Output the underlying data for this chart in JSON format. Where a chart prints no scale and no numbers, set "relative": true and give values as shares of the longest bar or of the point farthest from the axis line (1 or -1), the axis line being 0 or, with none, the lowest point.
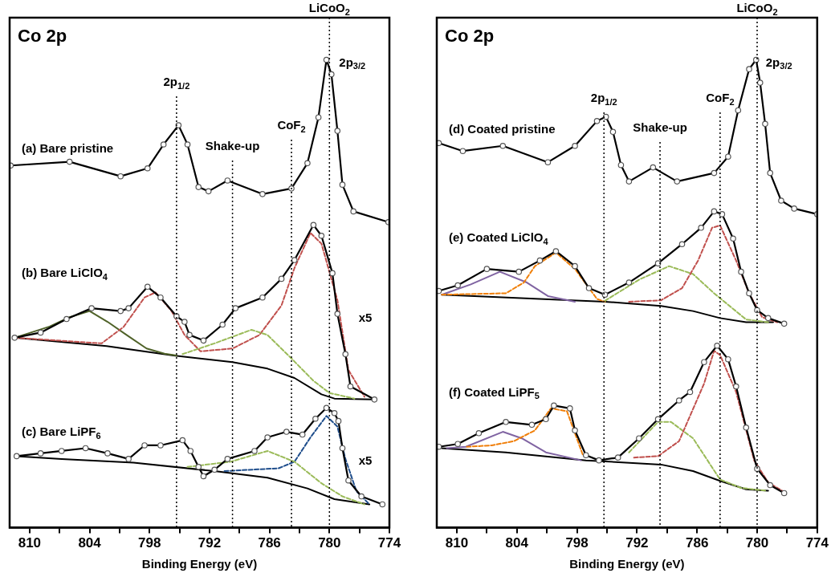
{
  "chart_data": [
    {
      "type": "line",
      "title": "Co 2p",
      "xlabel": "Binding Energy (eV)",
      "relative": true,
      "legend": false,
      "grid": false,
      "tick_labels": "x",
      "xlim": [
        812,
        774
      ],
      "xticks": [
        810,
        {
          "value": 807,
          "label": null
        },
        804,
        {
          "value": 801,
          "label": null
        },
        798,
        {
          "value": 795,
          "label": null
        },
        792,
        {
          "value": 789,
          "label": null
        },
        786,
        {
          "value": 783,
          "label": null
        },
        780,
        {
          "value": 777,
          "label": null
        },
        774
      ],
      "ref_lines": [
        {
          "axis": "x",
          "value": 795.3,
          "label": "2p$_{1/2}$",
          "line_style": "dotted",
          "color": "#000000"
        },
        {
          "axis": "x",
          "value": 789.7,
          "label": "Shake-up",
          "line_style": "dotted",
          "color": "#000000"
        },
        {
          "axis": "x",
          "value": 783.8,
          "label": "CoF$_{2}$",
          "line_style": "dotted",
          "color": "#000000"
        },
        {
          "axis": "x",
          "value": 780,
          "label": "LiCoO$_{2}$",
          "line_style": "dotted",
          "color": "#000000"
        }
      ],
      "annotations": [
        {
          "text": "2p$_{3/2}$",
          "x": 780,
          "y": 1
        },
        "x5",
        "x5"
      ],
      "series": [
        {
          "name": "(a) Bare pristine",
          "type": "line",
          "color": "#000000",
          "marker": "circle",
          "line_style": "solid",
          "x": [
            811.9,
            806,
            800.9,
            798.2,
            796.6,
            795.1,
            794.2,
            793.1,
            792.1,
            790.2,
            786.7,
            783.8,
            782.2,
            781.1,
            780.3,
            779.8,
            779.2,
            778.7,
            777.6,
            774.1
          ],
          "values": [
            0.774,
            0.782,
            0.751,
            0.768,
            0.819,
            0.86,
            0.819,
            0.728,
            0.719,
            0.742,
            0.713,
            0.725,
            0.779,
            0.877,
            1,
            0.969,
            0.848,
            0.733,
            0.676,
            0.653
          ]
        },
        {
          "type": "line",
          "color": "#000000",
          "marker": "none",
          "line_style": "solid",
          "x": [
            811.5,
            802.3,
            795.6,
            789.7,
            786.2,
            783.5,
            780.8,
            779.5,
            775.6
          ],
          "values": [
            0.406,
            0.388,
            0.368,
            0.354,
            0.34,
            0.32,
            0.285,
            0.276,
            0.274
          ]
        },
        {
          "type": "line",
          "color": "#4f6228",
          "marker": "none",
          "line_style": "solid",
          "x": [
            811.5,
            808,
            806,
            804,
            802.2,
            800.3,
            798.3,
            796.5,
            795.3
          ],
          "values": [
            0.406,
            0.43,
            0.45,
            0.463,
            0.44,
            0.412,
            0.383,
            0.372,
            0.368
          ]
        },
        {
          "type": "line",
          "color": "#c0504d",
          "marker": "none",
          "line_style": "dashed",
          "x": [
            811.5,
            802.8,
            800.6,
            798.5,
            797.4,
            795.8,
            794.5,
            792.9,
            789.7,
            787,
            784.8,
            783.5,
            781.9,
            780.8,
            779.2,
            778.1,
            776.5
          ],
          "values": [
            0.406,
            0.394,
            0.429,
            0.492,
            0.503,
            0.463,
            0.412,
            0.377,
            0.383,
            0.412,
            0.475,
            0.555,
            0.63,
            0.607,
            0.486,
            0.337,
            0.28
          ]
        },
        {
          "type": "line",
          "color": "#9bbb59",
          "marker": "none",
          "line_style": "dashed",
          "x": [
            794.7,
            791.5,
            787.8,
            786.2,
            784,
            781.6,
            780,
            777.5
          ],
          "values": [
            0.371,
            0.394,
            0.423,
            0.412,
            0.366,
            0.314,
            0.288,
            0.276
          ]
        },
        {
          "name": "(b) Bare LiClO$_{4}$",
          "type": "line",
          "color": "#000000",
          "marker": "circle",
          "line_style": "solid",
          "x": [
            811.5,
            808.9,
            806.3,
            803.8,
            800.9,
            800.1,
            798.2,
            796.9,
            795.3,
            794.5,
            794,
            792.6,
            790.7,
            789.4,
            786.7,
            784.8,
            783.5,
            781.6,
            780.8,
            779.7,
            779.2,
            778.4,
            777.9,
            775.5
          ],
          "values": [
            0.406,
            0.417,
            0.446,
            0.469,
            0.463,
            0.469,
            0.515,
            0.492,
            0.452,
            0.44,
            0.412,
            0.4,
            0.434,
            0.469,
            0.492,
            0.532,
            0.572,
            0.647,
            0.624,
            0.544,
            0.457,
            0.371,
            0.302,
            0.274
          ]
        },
        {
          "type": "line",
          "color": "#000000",
          "marker": "none",
          "line_style": "solid",
          "x": [
            811.3,
            806.8,
            799.6,
            791.5,
            786.2,
            782.2,
            779.5,
            776
          ],
          "values": [
            0.153,
            0.147,
            0.139,
            0.121,
            0.107,
            0.084,
            0.061,
            0.05
          ]
        },
        {
          "type": "line",
          "color": "#1f4e8c",
          "marker": "none",
          "line_style": "dashed",
          "x": [
            790.5,
            785.1,
            783.5,
            781.9,
            780.3,
            779.2,
            778.4,
            777.3,
            776
          ],
          "values": [
            0.121,
            0.127,
            0.141,
            0.193,
            0.239,
            0.216,
            0.147,
            0.078,
            0.05
          ]
        },
        {
          "type": "line",
          "color": "#9bbb59",
          "marker": "none",
          "line_style": "dashed",
          "x": [
            794.2,
            789.9,
            786.2,
            783.5,
            780.8,
            778.7,
            776.5
          ],
          "values": [
            0.13,
            0.141,
            0.164,
            0.141,
            0.095,
            0.067,
            0.05
          ]
        },
        {
          "name": "(c) Bare LiPF$_{6}$",
          "type": "line",
          "color": "#000000",
          "marker": "circle",
          "line_style": "solid",
          "x": [
            811.3,
            808.9,
            806.8,
            804.4,
            802.2,
            800.1,
            798.5,
            796.9,
            794.7,
            793.9,
            793.1,
            792.6,
            791.5,
            790.2,
            787.5,
            786.2,
            784.3,
            782.7,
            781.4,
            780.3,
            779.5,
            779.1,
            778.7,
            778.1,
            776.8,
            774.7
          ],
          "values": [
            0.153,
            0.159,
            0.164,
            0.17,
            0.159,
            0.147,
            0.176,
            0.176,
            0.187,
            0.164,
            0.13,
            0.11,
            0.124,
            0.147,
            0.164,
            0.193,
            0.205,
            0.199,
            0.233,
            0.256,
            0.245,
            0.228,
            0.17,
            0.101,
            0.067,
            0.05
          ]
        }
      ]
    },
    {
      "type": "line",
      "title": "Co 2p",
      "xlabel": "Binding Energy (eV)",
      "relative": true,
      "legend": false,
      "grid": false,
      "tick_labels": "x",
      "xlim": [
        812,
        774
      ],
      "xticks": [
        810,
        {
          "value": 807,
          "label": null
        },
        804,
        {
          "value": 801,
          "label": null
        },
        798,
        {
          "value": 795,
          "label": null
        },
        792,
        {
          "value": 789,
          "label": null
        },
        786,
        {
          "value": 783,
          "label": null
        },
        780,
        {
          "value": 777,
          "label": null
        },
        774
      ],
      "ref_lines": [
        {
          "axis": "x",
          "value": 795.3,
          "label": "2p$_{1/2}$",
          "line_style": "dotted",
          "color": "#000000"
        },
        {
          "axis": "x",
          "value": 789.7,
          "label": "Shake-up",
          "line_style": "dotted",
          "color": "#000000"
        },
        {
          "axis": "x",
          "value": 783.7,
          "label": "CoF$_{2}$",
          "line_style": "dotted",
          "color": "#000000"
        },
        {
          "axis": "x",
          "value": 780,
          "label": "LiCoO$_{2}$",
          "line_style": "dotted",
          "color": "#000000"
        }
      ],
      "annotations": [
        {
          "text": "2p$_{3/2}$",
          "x": 780.1,
          "y": 1
        }
      ],
      "series": [
        {
          "name": "(d) Coated pristine",
          "type": "line",
          "color": "#000000",
          "marker": "circle",
          "line_style": "solid",
          "x": [
            811.8,
            809.4,
            805.4,
            800.9,
            798.2,
            796,
            795.1,
            794.4,
            793.6,
            792.8,
            790.4,
            788,
            784.3,
            782.9,
            781.9,
            780.8,
            780.1,
            779.7,
            779.2,
            778.7,
            777.6,
            776.3,
            774
          ],
          "values": [
            0.822,
            0.805,
            0.816,
            0.781,
            0.816,
            0.869,
            0.878,
            0.846,
            0.775,
            0.74,
            0.77,
            0.74,
            0.758,
            0.793,
            0.892,
            0.98,
            1,
            0.951,
            0.863,
            0.758,
            0.699,
            0.682,
            0.67
          ]
        },
        {
          "type": "line",
          "color": "#000000",
          "marker": "none",
          "line_style": "solid",
          "x": [
            811.5,
            795.2,
            789.6,
            786.4,
            783.7,
            781.1,
            778.4
          ],
          "values": [
            0.498,
            0.483,
            0.474,
            0.463,
            0.448,
            0.439,
            0.439
          ]
        },
        {
          "type": "line",
          "color": "#8064a2",
          "marker": "none",
          "line_style": "solid",
          "x": [
            811.5,
            808.6,
            805.7,
            803,
            800.9,
            798.2
          ],
          "values": [
            0.498,
            0.52,
            0.547,
            0.524,
            0.495,
            0.483
          ]
        },
        {
          "type": "line",
          "color": "#f07f09",
          "marker": "none",
          "line_style": "dashed",
          "x": [
            811.5,
            805.1,
            803.3,
            802.2,
            800.1,
            798.2,
            796,
            795.2
          ],
          "values": [
            0.498,
            0.501,
            0.524,
            0.559,
            0.588,
            0.553,
            0.489,
            0.483
          ]
        },
        {
          "type": "line",
          "color": "#9bbb59",
          "marker": "none",
          "line_style": "dashed",
          "x": [
            795.2,
            791.8,
            788.8,
            786.4,
            784.3,
            781.1,
            778.9
          ],
          "values": [
            0.485,
            0.53,
            0.559,
            0.542,
            0.501,
            0.445,
            0.439
          ]
        },
        {
          "type": "line",
          "color": "#c0504d",
          "marker": "none",
          "line_style": "dashed",
          "x": [
            792.8,
            789.6,
            787.5,
            785.9,
            784.5,
            783.7,
            782.1,
            780.8,
            779.5,
            778
          ],
          "values": [
            0.483,
            0.486,
            0.512,
            0.571,
            0.641,
            0.646,
            0.571,
            0.501,
            0.45,
            0.439
          ]
        },
        {
          "name": "(e) Coated LiClO$_{4}$",
          "type": "line",
          "color": "#000000",
          "marker": "circle",
          "line_style": "solid",
          "x": [
            811.8,
            809.9,
            807,
            803.8,
            801.7,
            800.1,
            798.2,
            796.8,
            795.2,
            792.8,
            789.9,
            787.5,
            785.6,
            784.3,
            783.5,
            782.4,
            781.6,
            780.8,
            780,
            778.9,
            777.3
          ],
          "values": [
            0.506,
            0.518,
            0.553,
            0.547,
            0.571,
            0.591,
            0.559,
            0.512,
            0.498,
            0.524,
            0.565,
            0.606,
            0.641,
            0.676,
            0.67,
            0.618,
            0.547,
            0.501,
            0.465,
            0.448,
            0.436
          ]
        },
        {
          "type": "line",
          "color": "#000000",
          "marker": "none",
          "line_style": "solid",
          "x": [
            811.5,
            805.1,
            797.1,
            789.6,
            786.4,
            783.7,
            781.1,
            778.9
          ],
          "values": [
            0.17,
            0.161,
            0.144,
            0.135,
            0.121,
            0.1,
            0.082,
            0.079
          ]
        },
        {
          "type": "line",
          "color": "#8064a2",
          "marker": "none",
          "line_style": "solid",
          "x": [
            811,
            809.1,
            805.4,
            803.5,
            801.1,
            797.6
          ],
          "values": [
            0.17,
            0.173,
            0.205,
            0.191,
            0.161,
            0.144
          ]
        },
        {
          "type": "line",
          "color": "#f07f09",
          "marker": "none",
          "line_style": "dashed",
          "x": [
            809,
            806.5,
            804.3,
            802.2,
            800.6,
            799,
            797.4
          ],
          "values": [
            0.173,
            0.176,
            0.185,
            0.208,
            0.255,
            0.249,
            0.155
          ]
        },
        {
          "type": "line",
          "color": "#9bbb59",
          "marker": "none",
          "line_style": "dashed",
          "x": [
            792.8,
            789.9,
            788.6,
            786.4,
            783.7,
            781.6,
            779
          ],
          "values": [
            0.161,
            0.226,
            0.226,
            0.191,
            0.103,
            0.085,
            0.079
          ]
        },
        {
          "type": "line",
          "color": "#c0504d",
          "marker": "none",
          "line_style": "dashed",
          "x": [
            792.3,
            789.9,
            787.8,
            785.3,
            784.3,
            783.7,
            782.1,
            780.3,
            778.9,
            777.5
          ],
          "values": [
            0.15,
            0.153,
            0.185,
            0.308,
            0.378,
            0.369,
            0.29,
            0.144,
            0.097,
            0.079
          ]
        },
        {
          "name": "(f) Coated LiPF$_{5}$",
          "type": "line",
          "color": "#000000",
          "marker": "circle",
          "line_style": "solid",
          "x": [
            811.8,
            809.9,
            807.8,
            805.1,
            802.5,
            801.1,
            800.3,
            798.7,
            798.2,
            797.1,
            795.8,
            793.9,
            791.8,
            789.9,
            787.8,
            786.7,
            785.3,
            784,
            782.9,
            782.1,
            781.1,
            780,
            778.7,
            777.3
          ],
          "values": [
            0.173,
            0.179,
            0.202,
            0.226,
            0.22,
            0.232,
            0.261,
            0.255,
            0.208,
            0.155,
            0.144,
            0.15,
            0.191,
            0.232,
            0.272,
            0.29,
            0.354,
            0.389,
            0.36,
            0.302,
            0.214,
            0.126,
            0.091,
            0.074
          ]
        }
      ]
    }
  ]
}
